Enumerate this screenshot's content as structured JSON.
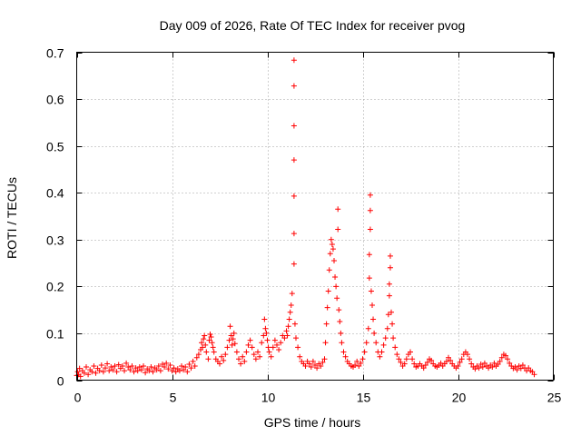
{
  "chart_data": {
    "type": "scatter",
    "title": "Day 009 of 2026, Rate Of TEC Index for receiver pvog",
    "xlabel": "GPS time / hours",
    "ylabel": "ROTI / TECUs",
    "xlim": [
      0,
      25
    ],
    "ylim": [
      0,
      0.7
    ],
    "xticks": [
      0,
      5,
      10,
      15,
      20,
      25
    ],
    "yticks": [
      0,
      0.1,
      0.2,
      0.3,
      0.4,
      0.5,
      0.6,
      0.7
    ],
    "xtick_labels": [
      "0",
      "5",
      "10",
      "15",
      "20",
      "25"
    ],
    "ytick_labels": [
      "0",
      "0.1",
      "0.2",
      "0.3",
      "0.4",
      "0.5",
      "0.6",
      "0.7"
    ],
    "grid": true,
    "marker": "+",
    "color": "#ff0000",
    "series": [
      {
        "name": "ROTI",
        "points": [
          [
            0.0,
            0.01
          ],
          [
            0.05,
            0.018
          ],
          [
            0.1,
            0.012
          ],
          [
            0.15,
            0.025
          ],
          [
            0.2,
            0.008
          ],
          [
            0.3,
            0.02
          ],
          [
            0.4,
            0.015
          ],
          [
            0.5,
            0.028
          ],
          [
            0.6,
            0.012
          ],
          [
            0.7,
            0.022
          ],
          [
            0.8,
            0.018
          ],
          [
            0.9,
            0.03
          ],
          [
            1.0,
            0.015
          ],
          [
            1.1,
            0.025
          ],
          [
            1.2,
            0.02
          ],
          [
            1.3,
            0.032
          ],
          [
            1.4,
            0.018
          ],
          [
            1.5,
            0.026
          ],
          [
            1.6,
            0.035
          ],
          [
            1.7,
            0.02
          ],
          [
            1.8,
            0.028
          ],
          [
            1.9,
            0.022
          ],
          [
            2.0,
            0.03
          ],
          [
            2.1,
            0.018
          ],
          [
            2.2,
            0.033
          ],
          [
            2.3,
            0.025
          ],
          [
            2.4,
            0.03
          ],
          [
            2.5,
            0.02
          ],
          [
            2.6,
            0.036
          ],
          [
            2.7,
            0.028
          ],
          [
            2.8,
            0.022
          ],
          [
            2.9,
            0.03
          ],
          [
            3.0,
            0.018
          ],
          [
            3.1,
            0.026
          ],
          [
            3.2,
            0.02
          ],
          [
            3.3,
            0.028
          ],
          [
            3.4,
            0.022
          ],
          [
            3.5,
            0.03
          ],
          [
            3.6,
            0.016
          ],
          [
            3.7,
            0.024
          ],
          [
            3.8,
            0.02
          ],
          [
            3.9,
            0.028
          ],
          [
            4.0,
            0.018
          ],
          [
            4.1,
            0.026
          ],
          [
            4.2,
            0.022
          ],
          [
            4.3,
            0.03
          ],
          [
            4.4,
            0.02
          ],
          [
            4.5,
            0.034
          ],
          [
            4.6,
            0.028
          ],
          [
            4.7,
            0.036
          ],
          [
            4.8,
            0.024
          ],
          [
            4.9,
            0.032
          ],
          [
            5.0,
            0.02
          ],
          [
            5.1,
            0.026
          ],
          [
            5.2,
            0.018
          ],
          [
            5.3,
            0.024
          ],
          [
            5.4,
            0.02
          ],
          [
            5.5,
            0.03
          ],
          [
            5.6,
            0.022
          ],
          [
            5.7,
            0.028
          ],
          [
            5.8,
            0.018
          ],
          [
            5.9,
            0.034
          ],
          [
            6.0,
            0.026
          ],
          [
            6.1,
            0.04
          ],
          [
            6.2,
            0.03
          ],
          [
            6.3,
            0.048
          ],
          [
            6.4,
            0.055
          ],
          [
            6.5,
            0.065
          ],
          [
            6.55,
            0.08
          ],
          [
            6.6,
            0.07
          ],
          [
            6.65,
            0.088
          ],
          [
            6.7,
            0.095
          ],
          [
            6.75,
            0.075
          ],
          [
            6.8,
            0.06
          ],
          [
            6.9,
            0.045
          ],
          [
            6.95,
            0.085
          ],
          [
            7.0,
            0.098
          ],
          [
            7.05,
            0.092
          ],
          [
            7.1,
            0.08
          ],
          [
            7.15,
            0.07
          ],
          [
            7.2,
            0.06
          ],
          [
            7.3,
            0.045
          ],
          [
            7.4,
            0.04
          ],
          [
            7.5,
            0.035
          ],
          [
            7.6,
            0.05
          ],
          [
            7.7,
            0.042
          ],
          [
            7.8,
            0.055
          ],
          [
            7.9,
            0.07
          ],
          [
            8.0,
            0.085
          ],
          [
            8.05,
            0.115
          ],
          [
            8.1,
            0.095
          ],
          [
            8.15,
            0.075
          ],
          [
            8.2,
            0.088
          ],
          [
            8.25,
            0.1
          ],
          [
            8.3,
            0.078
          ],
          [
            8.4,
            0.06
          ],
          [
            8.5,
            0.045
          ],
          [
            8.6,
            0.035
          ],
          [
            8.7,
            0.05
          ],
          [
            8.8,
            0.04
          ],
          [
            8.9,
            0.06
          ],
          [
            9.0,
            0.075
          ],
          [
            9.1,
            0.085
          ],
          [
            9.2,
            0.07
          ],
          [
            9.3,
            0.055
          ],
          [
            9.4,
            0.045
          ],
          [
            9.5,
            0.06
          ],
          [
            9.6,
            0.05
          ],
          [
            9.7,
            0.08
          ],
          [
            9.8,
            0.095
          ],
          [
            9.85,
            0.13
          ],
          [
            9.9,
            0.11
          ],
          [
            9.95,
            0.1
          ],
          [
            10.0,
            0.085
          ],
          [
            10.05,
            0.07
          ],
          [
            10.1,
            0.06
          ],
          [
            10.2,
            0.05
          ],
          [
            10.3,
            0.07
          ],
          [
            10.4,
            0.085
          ],
          [
            10.5,
            0.075
          ],
          [
            10.6,
            0.065
          ],
          [
            10.7,
            0.08
          ],
          [
            10.8,
            0.095
          ],
          [
            10.9,
            0.09
          ],
          [
            11.0,
            0.105
          ],
          [
            11.05,
            0.095
          ],
          [
            11.1,
            0.115
          ],
          [
            11.15,
            0.13
          ],
          [
            11.2,
            0.145
          ],
          [
            11.25,
            0.16
          ],
          [
            11.3,
            0.185
          ],
          [
            11.4,
            0.248
          ],
          [
            11.4,
            0.313
          ],
          [
            11.4,
            0.393
          ],
          [
            11.4,
            0.47
          ],
          [
            11.4,
            0.543
          ],
          [
            11.4,
            0.628
          ],
          [
            11.4,
            0.683
          ],
          [
            11.45,
            0.12
          ],
          [
            11.5,
            0.09
          ],
          [
            11.6,
            0.07
          ],
          [
            11.7,
            0.05
          ],
          [
            11.8,
            0.04
          ],
          [
            11.9,
            0.035
          ],
          [
            12.0,
            0.03
          ],
          [
            12.1,
            0.04
          ],
          [
            12.2,
            0.035
          ],
          [
            12.3,
            0.028
          ],
          [
            12.4,
            0.04
          ],
          [
            12.5,
            0.032
          ],
          [
            12.6,
            0.026
          ],
          [
            12.7,
            0.035
          ],
          [
            12.8,
            0.03
          ],
          [
            12.9,
            0.038
          ],
          [
            13.0,
            0.045
          ],
          [
            13.05,
            0.08
          ],
          [
            13.1,
            0.12
          ],
          [
            13.15,
            0.155
          ],
          [
            13.2,
            0.19
          ],
          [
            13.25,
            0.235
          ],
          [
            13.3,
            0.27
          ],
          [
            13.35,
            0.3
          ],
          [
            13.4,
            0.29
          ],
          [
            13.45,
            0.28
          ],
          [
            13.5,
            0.255
          ],
          [
            13.55,
            0.22
          ],
          [
            13.6,
            0.2
          ],
          [
            13.65,
            0.175
          ],
          [
            13.7,
            0.365
          ],
          [
            13.7,
            0.322
          ],
          [
            13.75,
            0.15
          ],
          [
            13.8,
            0.125
          ],
          [
            13.85,
            0.1
          ],
          [
            13.9,
            0.08
          ],
          [
            14.0,
            0.06
          ],
          [
            14.1,
            0.05
          ],
          [
            14.2,
            0.04
          ],
          [
            14.3,
            0.035
          ],
          [
            14.4,
            0.03
          ],
          [
            14.5,
            0.028
          ],
          [
            14.6,
            0.032
          ],
          [
            14.7,
            0.04
          ],
          [
            14.8,
            0.03
          ],
          [
            14.9,
            0.036
          ],
          [
            15.0,
            0.045
          ],
          [
            15.1,
            0.06
          ],
          [
            15.2,
            0.08
          ],
          [
            15.3,
            0.11
          ],
          [
            15.35,
            0.218
          ],
          [
            15.35,
            0.268
          ],
          [
            15.4,
            0.322
          ],
          [
            15.4,
            0.362
          ],
          [
            15.4,
            0.395
          ],
          [
            15.45,
            0.19
          ],
          [
            15.5,
            0.16
          ],
          [
            15.55,
            0.13
          ],
          [
            15.6,
            0.1
          ],
          [
            15.7,
            0.08
          ],
          [
            15.8,
            0.06
          ],
          [
            15.9,
            0.05
          ],
          [
            16.0,
            0.06
          ],
          [
            16.1,
            0.075
          ],
          [
            16.2,
            0.09
          ],
          [
            16.3,
            0.11
          ],
          [
            16.35,
            0.14
          ],
          [
            16.4,
            0.18
          ],
          [
            16.4,
            0.205
          ],
          [
            16.45,
            0.24
          ],
          [
            16.45,
            0.265
          ],
          [
            16.5,
            0.145
          ],
          [
            16.55,
            0.12
          ],
          [
            16.6,
            0.09
          ],
          [
            16.7,
            0.07
          ],
          [
            16.8,
            0.055
          ],
          [
            16.9,
            0.045
          ],
          [
            17.0,
            0.038
          ],
          [
            17.1,
            0.03
          ],
          [
            17.2,
            0.035
          ],
          [
            17.3,
            0.045
          ],
          [
            17.4,
            0.055
          ],
          [
            17.5,
            0.06
          ],
          [
            17.6,
            0.045
          ],
          [
            17.7,
            0.035
          ],
          [
            17.8,
            0.028
          ],
          [
            17.9,
            0.03
          ],
          [
            18.0,
            0.035
          ],
          [
            18.1,
            0.03
          ],
          [
            18.2,
            0.026
          ],
          [
            18.3,
            0.032
          ],
          [
            18.4,
            0.038
          ],
          [
            18.5,
            0.045
          ],
          [
            18.6,
            0.042
          ],
          [
            18.7,
            0.035
          ],
          [
            18.8,
            0.03
          ],
          [
            18.9,
            0.028
          ],
          [
            19.0,
            0.032
          ],
          [
            19.1,
            0.036
          ],
          [
            19.2,
            0.03
          ],
          [
            19.3,
            0.035
          ],
          [
            19.4,
            0.04
          ],
          [
            19.5,
            0.048
          ],
          [
            19.6,
            0.042
          ],
          [
            19.7,
            0.035
          ],
          [
            19.8,
            0.03
          ],
          [
            19.9,
            0.026
          ],
          [
            20.0,
            0.03
          ],
          [
            20.1,
            0.038
          ],
          [
            20.2,
            0.045
          ],
          [
            20.3,
            0.055
          ],
          [
            20.4,
            0.06
          ],
          [
            20.5,
            0.055
          ],
          [
            20.6,
            0.045
          ],
          [
            20.7,
            0.035
          ],
          [
            20.8,
            0.028
          ],
          [
            20.9,
            0.024
          ],
          [
            21.0,
            0.03
          ],
          [
            21.1,
            0.026
          ],
          [
            21.2,
            0.034
          ],
          [
            21.3,
            0.028
          ],
          [
            21.4,
            0.036
          ],
          [
            21.5,
            0.03
          ],
          [
            21.6,
            0.026
          ],
          [
            21.7,
            0.032
          ],
          [
            21.8,
            0.028
          ],
          [
            21.9,
            0.036
          ],
          [
            22.0,
            0.03
          ],
          [
            22.1,
            0.034
          ],
          [
            22.2,
            0.04
          ],
          [
            22.3,
            0.048
          ],
          [
            22.4,
            0.055
          ],
          [
            22.5,
            0.052
          ],
          [
            22.6,
            0.045
          ],
          [
            22.7,
            0.036
          ],
          [
            22.8,
            0.03
          ],
          [
            22.9,
            0.025
          ],
          [
            23.0,
            0.028
          ],
          [
            23.1,
            0.022
          ],
          [
            23.2,
            0.03
          ],
          [
            23.3,
            0.025
          ],
          [
            23.4,
            0.032
          ],
          [
            23.5,
            0.026
          ],
          [
            23.6,
            0.02
          ],
          [
            23.7,
            0.026
          ],
          [
            23.8,
            0.02
          ],
          [
            23.9,
            0.018
          ],
          [
            24.0,
            0.012
          ]
        ]
      }
    ]
  }
}
